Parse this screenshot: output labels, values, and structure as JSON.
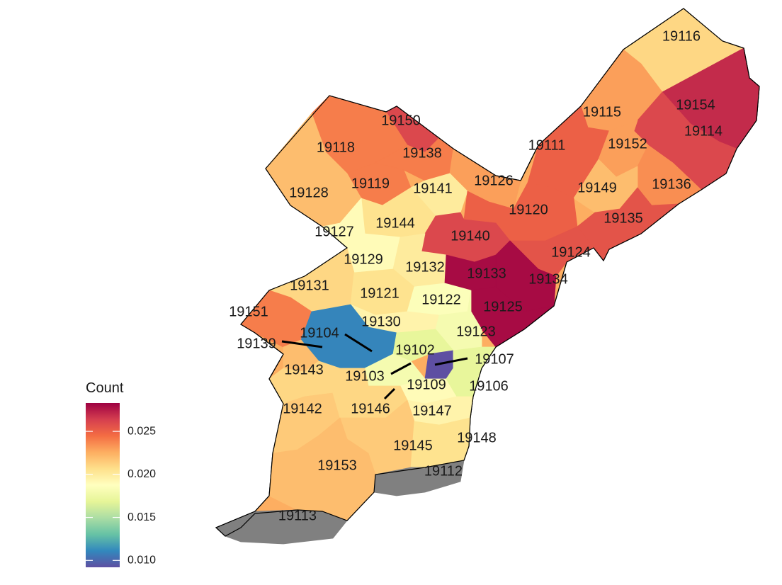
{
  "legend": {
    "title": "Count",
    "min": 0.0092,
    "max": 0.0283,
    "ticks": [
      "0.010",
      "0.015",
      "0.020",
      "0.025"
    ],
    "tick_values": [
      0.01,
      0.015,
      0.02,
      0.025
    ],
    "colors": [
      "#5E4FA2",
      "#3288BD",
      "#66C2A5",
      "#ABDDA4",
      "#E6F598",
      "#FFFFBF",
      "#FEE08B",
      "#FDAE61",
      "#F46D43",
      "#D53E4F",
      "#9E0142"
    ],
    "missing_color": "#808080"
  },
  "zips": [
    {
      "id": "19116",
      "value": 0.021
    },
    {
      "id": "19154",
      "value": 0.027
    },
    {
      "id": "19115",
      "value": 0.023
    },
    {
      "id": "19114",
      "value": 0.026
    },
    {
      "id": "19111",
      "value": 0.025
    },
    {
      "id": "19152",
      "value": 0.023
    },
    {
      "id": "19136",
      "value": 0.0235
    },
    {
      "id": "19149",
      "value": 0.022
    },
    {
      "id": "19135",
      "value": 0.0255
    },
    {
      "id": "19150",
      "value": 0.026
    },
    {
      "id": "19118",
      "value": 0.024
    },
    {
      "id": "19138",
      "value": 0.024
    },
    {
      "id": "19126",
      "value": 0.023
    },
    {
      "id": "19119",
      "value": 0.024
    },
    {
      "id": "19141",
      "value": 0.02
    },
    {
      "id": "19128",
      "value": 0.022
    },
    {
      "id": "19120",
      "value": 0.025
    },
    {
      "id": "19144",
      "value": 0.0205
    },
    {
      "id": "19140",
      "value": 0.026
    },
    {
      "id": "19124",
      "value": 0.0255
    },
    {
      "id": "19127",
      "value": 0.019
    },
    {
      "id": "19129",
      "value": 0.019
    },
    {
      "id": "19132",
      "value": 0.02
    },
    {
      "id": "19133",
      "value": 0.028
    },
    {
      "id": "19134",
      "value": 0.028
    },
    {
      "id": "19131",
      "value": 0.021
    },
    {
      "id": "19121",
      "value": 0.0205
    },
    {
      "id": "19122",
      "value": 0.0185
    },
    {
      "id": "19125",
      "value": 0.028
    },
    {
      "id": "19151",
      "value": 0.024
    },
    {
      "id": "19130",
      "value": 0.0195
    },
    {
      "id": "19104",
      "value": 0.011
    },
    {
      "id": "19123",
      "value": 0.018
    },
    {
      "id": "19139",
      "value": 0.022
    },
    {
      "id": "19102",
      "value": 0.017
    },
    {
      "id": "19107",
      "value": 0.0092
    },
    {
      "id": "19143",
      "value": 0.021
    },
    {
      "id": "19103",
      "value": 0.018
    },
    {
      "id": "19109",
      "value": 0.019
    },
    {
      "id": "19106",
      "value": 0.017
    },
    {
      "id": "19142",
      "value": 0.0215
    },
    {
      "id": "19146",
      "value": 0.021
    },
    {
      "id": "19147",
      "value": 0.0195
    },
    {
      "id": "19145",
      "value": 0.0215
    },
    {
      "id": "19148",
      "value": 0.0205
    },
    {
      "id": "19153",
      "value": 0.022
    },
    {
      "id": "19112",
      "value": null
    },
    {
      "id": "19113",
      "value": null
    }
  ]
}
